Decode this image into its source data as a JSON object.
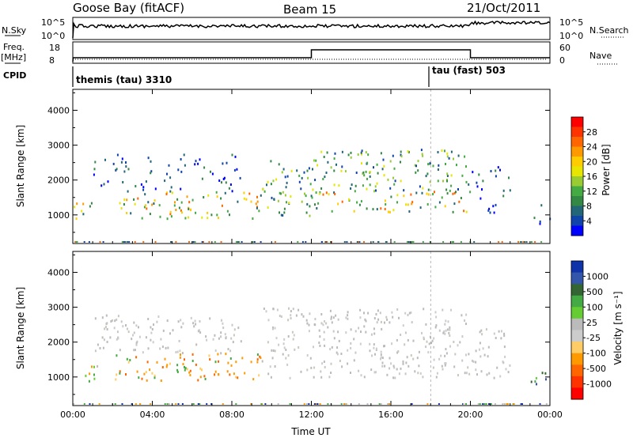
{
  "header": {
    "station": "Goose Bay (fitACF)",
    "beam": "Beam 15",
    "date": "21/Oct/2011"
  },
  "status": {
    "nsky_label": "N.Sky",
    "nsky_ticks": [
      "10^5",
      "10^0"
    ],
    "nsearch_label": "N.Search",
    "nsearch_ticks": [
      "10^5",
      "10^0"
    ],
    "freq_label": "Freq.",
    "freq_unit": "[MHz]",
    "freq_ticks": [
      "18",
      "8"
    ],
    "nave_label": "Nave",
    "nave_ticks": [
      "60",
      "0"
    ],
    "cpid_label": "CPID",
    "cpid_segments": [
      {
        "label": "themis (tau) 3310",
        "start_hour": 0.0
      },
      {
        "label": "tau (fast) 503",
        "start_hour": 18.0
      }
    ],
    "high_freq_period_hours": [
      12.0,
      20.0
    ]
  },
  "chart_data": [
    {
      "type": "heatmap",
      "name": "power-panel",
      "ylabel": "Slant Range [km]",
      "xlabel": "",
      "xlim": [
        0,
        24
      ],
      "ylim": [
        180,
        4600
      ],
      "x_ticks": [
        0,
        4,
        8,
        12,
        16,
        20,
        24
      ],
      "y_ticks": [
        1000,
        2000,
        3000,
        4000
      ],
      "colorbar": {
        "label": "Power [dB]",
        "tick_labels": [
          "28",
          "24",
          "20",
          "16",
          "12",
          "8",
          "4"
        ],
        "colors": [
          "#ff0000",
          "#ff3300",
          "#ff6600",
          "#ff9900",
          "#ffcc00",
          "#e6e600",
          "#99cc33",
          "#44aa44",
          "#338844",
          "#226677",
          "#1144aa",
          "#0000ff"
        ]
      },
      "scatter_regions": [
        {
          "hours": [
            0.0,
            1.2
          ],
          "range_km": [
            900,
            1400
          ],
          "level": "high"
        },
        {
          "hours": [
            2.0,
            3.0
          ],
          "range_km": [
            1000,
            1500
          ],
          "level": "high"
        },
        {
          "hours": [
            3.0,
            9.5
          ],
          "range_km": [
            900,
            1700
          ],
          "level": "high"
        },
        {
          "hours": [
            1.0,
            8.5
          ],
          "range_km": [
            1700,
            2800
          ],
          "level": "low"
        },
        {
          "hours": [
            9.5,
            12.0
          ],
          "range_km": [
            1000,
            2600
          ],
          "level": "medium"
        },
        {
          "hours": [
            12.0,
            20.0
          ],
          "range_km": [
            1100,
            1700
          ],
          "level": "high"
        },
        {
          "hours": [
            12.0,
            20.0
          ],
          "range_km": [
            1700,
            2900
          ],
          "level": "medium"
        },
        {
          "hours": [
            20.0,
            22.0
          ],
          "range_km": [
            1000,
            2400
          ],
          "level": "low"
        },
        {
          "hours": [
            23.0,
            24.0
          ],
          "range_km": [
            700,
            1400
          ],
          "level": "low"
        }
      ]
    },
    {
      "type": "heatmap",
      "name": "velocity-panel",
      "ylabel": "Slant Range [km]",
      "xlabel": "Time UT",
      "xlim": [
        0,
        24
      ],
      "ylim": [
        180,
        4600
      ],
      "x_ticks": [
        0,
        4,
        8,
        12,
        16,
        20,
        24
      ],
      "x_tick_labels": [
        "00:00",
        "04:00",
        "08:00",
        "12:00",
        "16:00",
        "20:00",
        "00:00"
      ],
      "y_ticks": [
        1000,
        2000,
        3000,
        4000
      ],
      "colorbar": {
        "label": "Velocity [m s⁻¹]",
        "tick_labels": [
          "1000",
          "500",
          "100",
          "25",
          "-25",
          "-100",
          "-500",
          "-1000"
        ],
        "colors": [
          "#1133aa",
          "#3355aa",
          "#336633",
          "#44aa44",
          "#66cc33",
          "#bbbbbb",
          "#cccccc",
          "#ffcc66",
          "#ff9900",
          "#ff6600",
          "#ff3300",
          "#ff0000"
        ]
      },
      "scatter_regions": [
        {
          "hours": [
            0.0,
            1.2
          ],
          "range_km": [
            900,
            1400
          ],
          "level": "mixed"
        },
        {
          "hours": [
            2.0,
            9.5
          ],
          "range_km": [
            900,
            1700
          ],
          "level": "away"
        },
        {
          "hours": [
            1.0,
            8.5
          ],
          "range_km": [
            1700,
            2800
          ],
          "level": "ground"
        },
        {
          "hours": [
            9.5,
            20.0
          ],
          "range_km": [
            1000,
            3000
          ],
          "level": "ground"
        },
        {
          "hours": [
            20.0,
            22.0
          ],
          "range_km": [
            1000,
            2400
          ],
          "level": "ground"
        },
        {
          "hours": [
            23.0,
            24.0
          ],
          "range_km": [
            700,
            1200
          ],
          "level": "toward"
        }
      ]
    }
  ]
}
